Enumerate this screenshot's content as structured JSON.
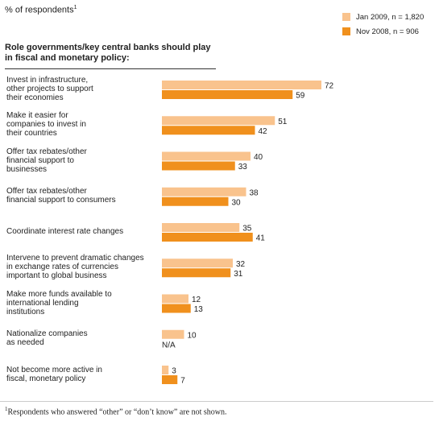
{
  "header": {
    "unit_label": "% of respondents",
    "unit_marker": "1"
  },
  "legend": {
    "items": [
      {
        "label": "Jan 2009, n = 1,820",
        "color": "#f9c38d"
      },
      {
        "label": "Nov 2008, n = 906",
        "color": "#f0901d"
      }
    ]
  },
  "chart_data": {
    "type": "bar",
    "orientation": "horizontal",
    "title": "Role governments/key central banks should play in fiscal and monetary policy:",
    "categories": [
      "Invest in infrastructure, other projects to support their economies",
      "Make it easier for companies to invest in their countries",
      "Offer tax rebates/other financial support to businesses",
      "Offer tax rebates/other financial support to consumers",
      "Coordinate interest rate changes",
      "Intervene to prevent dramatic changes in exchange rates of currencies important to global business",
      "Make more funds available to international lending institutions",
      "Nationalize companies as needed",
      "Not become more active in fiscal, monetary policy"
    ],
    "series": [
      {
        "name": "Jan 2009, n = 1,820",
        "color": "#f9c38d",
        "values": [
          72,
          51,
          40,
          38,
          35,
          32,
          12,
          10,
          3
        ]
      },
      {
        "name": "Nov 2008, n = 906",
        "color": "#f0901d",
        "values": [
          59,
          42,
          33,
          30,
          41,
          31,
          13,
          null,
          7
        ]
      }
    ],
    "missing_label": "N/A",
    "xlim": [
      0,
      100
    ],
    "grid": false
  },
  "footnote": {
    "marker": "1",
    "text": "Respondents who answered “other” or “don’t know” are not shown."
  }
}
